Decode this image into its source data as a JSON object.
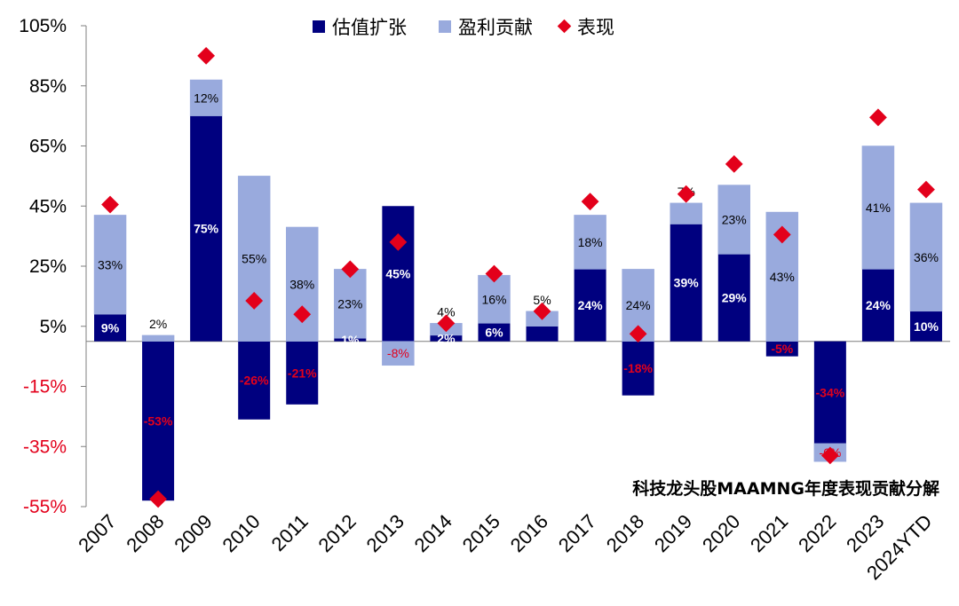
{
  "chart_data": {
    "type": "bar",
    "title": "",
    "annotation": "科技龙头股MAAMNG年度表现贡献分解",
    "xlabel": "",
    "ylabel": "",
    "ylim": [
      -55,
      105
    ],
    "yticks": [
      105,
      85,
      65,
      45,
      25,
      5,
      -15,
      -35,
      -55
    ],
    "ytick_labels": [
      "105%",
      "85%",
      "65%",
      "45%",
      "25%",
      "5%",
      "-15%",
      "-35%",
      "-55%"
    ],
    "categories": [
      "2007",
      "2008",
      "2009",
      "2010",
      "2011",
      "2012",
      "2013",
      "2014",
      "2015",
      "2016",
      "2017",
      "2018",
      "2019",
      "2020",
      "2021",
      "2022",
      "2023",
      "2024YTD"
    ],
    "legend_position": "top-center",
    "series": [
      {
        "name": "估值扩张",
        "color": "#00007f",
        "values": [
          9,
          -53,
          75,
          -26,
          -21,
          1,
          45,
          2,
          6,
          5,
          24,
          -18,
          39,
          29,
          -5,
          -34,
          24,
          10
        ],
        "labels": [
          "9%",
          "-53%",
          "75%",
          "-26%",
          "-21%",
          "1%",
          "45%",
          "2%",
          "6%",
          "",
          "24%",
          "-18%",
          "39%",
          "29%",
          "-5%",
          "-34%",
          "24%",
          "10%"
        ]
      },
      {
        "name": "盈利贡献",
        "color": "#99aadd",
        "values": [
          33,
          2,
          12,
          55,
          38,
          23,
          -8,
          4,
          16,
          5,
          18,
          24,
          7,
          23,
          43,
          -6,
          41,
          36
        ],
        "labels": [
          "33%",
          "2%",
          "12%",
          "55%",
          "38%",
          "23%",
          "-8%",
          "4%",
          "16%",
          "5%",
          "18%",
          "24%",
          "7%",
          "23%",
          "43%",
          "-6%",
          "41%",
          "36%"
        ]
      },
      {
        "name": "表现",
        "color": "#e3001b",
        "values": [
          45.5,
          -52.5,
          95,
          13.5,
          9,
          24,
          33,
          6,
          22.5,
          10,
          46.5,
          2.5,
          49,
          59,
          35.5,
          -38,
          74.5,
          50.5
        ]
      }
    ]
  }
}
